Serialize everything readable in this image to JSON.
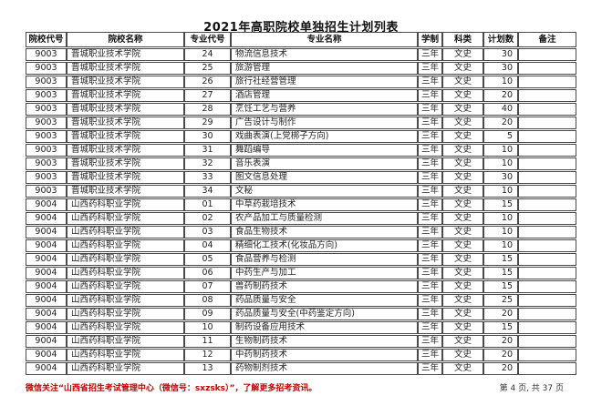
{
  "page": {
    "title": "2021年高职院校单独招生计划列表",
    "footer_note": "微信关注“山西省招生考试管理中心（微信号：sxzsks）”，了解更多招考资讯。",
    "page_info": "第 4 页, 共 37 页",
    "accent_red": "#c00000",
    "border_color": "#4a4a4a"
  },
  "table": {
    "headers": [
      "院校代号",
      "院校名称",
      "专业代号",
      "专业名称",
      "学制",
      "科类",
      "计划数",
      "备注"
    ],
    "rows": [
      [
        "9003",
        "晋城职业技术学院",
        "24",
        "物流信息技术",
        "三年",
        "文史",
        "30",
        ""
      ],
      [
        "9003",
        "晋城职业技术学院",
        "25",
        "旅游管理",
        "三年",
        "文史",
        "30",
        ""
      ],
      [
        "9003",
        "晋城职业技术学院",
        "26",
        "旅行社经营管理",
        "三年",
        "文史",
        "10",
        ""
      ],
      [
        "9003",
        "晋城职业技术学院",
        "27",
        "酒店管理",
        "三年",
        "文史",
        "20",
        ""
      ],
      [
        "9003",
        "晋城职业技术学院",
        "28",
        "烹饪工艺与营养",
        "三年",
        "文史",
        "40",
        ""
      ],
      [
        "9003",
        "晋城职业技术学院",
        "29",
        "广告设计与制作",
        "三年",
        "文史",
        "20",
        ""
      ],
      [
        "9003",
        "晋城职业技术学院",
        "30",
        "戏曲表演(上党梆子方向)",
        "三年",
        "文史",
        "5",
        ""
      ],
      [
        "9003",
        "晋城职业技术学院",
        "31",
        "舞蹈编导",
        "三年",
        "文史",
        "10",
        ""
      ],
      [
        "9003",
        "晋城职业技术学院",
        "32",
        "音乐表演",
        "三年",
        "文史",
        "10",
        ""
      ],
      [
        "9003",
        "晋城职业技术学院",
        "33",
        "图文信息处理",
        "三年",
        "文史",
        "30",
        ""
      ],
      [
        "9003",
        "晋城职业技术学院",
        "34",
        "文秘",
        "三年",
        "文史",
        "10",
        ""
      ],
      [
        "9004",
        "山西药科职业学院",
        "01",
        "中草药栽培技术",
        "三年",
        "文史",
        "15",
        ""
      ],
      [
        "9004",
        "山西药科职业学院",
        "02",
        "农产品加工与质量检测",
        "三年",
        "文史",
        "10",
        ""
      ],
      [
        "9004",
        "山西药科职业学院",
        "03",
        "食品生物技术",
        "三年",
        "文史",
        "10",
        ""
      ],
      [
        "9004",
        "山西药科职业学院",
        "04",
        "精细化工技术(化妆品方向)",
        "三年",
        "文史",
        "10",
        ""
      ],
      [
        "9004",
        "山西药科职业学院",
        "05",
        "食品营养与检测",
        "三年",
        "文史",
        "15",
        ""
      ],
      [
        "9004",
        "山西药科职业学院",
        "06",
        "中药生产与加工",
        "三年",
        "文史",
        "15",
        ""
      ],
      [
        "9004",
        "山西药科职业学院",
        "07",
        "兽药制药技术",
        "三年",
        "文史",
        "15",
        ""
      ],
      [
        "9004",
        "山西药科职业学院",
        "08",
        "药品质量与安全",
        "三年",
        "文史",
        "25",
        ""
      ],
      [
        "9004",
        "山西药科职业学院",
        "09",
        "药品质量与安全(中药鉴定方向)",
        "三年",
        "文史",
        "20",
        ""
      ],
      [
        "9004",
        "山西药科职业学院",
        "10",
        "制药设备应用技术",
        "三年",
        "文史",
        "15",
        ""
      ],
      [
        "9004",
        "山西药科职业学院",
        "11",
        "生物制药技术",
        "三年",
        "文史",
        "20",
        ""
      ],
      [
        "9004",
        "山西药科职业学院",
        "12",
        "中药制药技术",
        "三年",
        "文史",
        "20",
        ""
      ],
      [
        "9004",
        "山西药科职业学院",
        "13",
        "药物制剂技术",
        "三年",
        "文史",
        "20",
        ""
      ]
    ]
  }
}
